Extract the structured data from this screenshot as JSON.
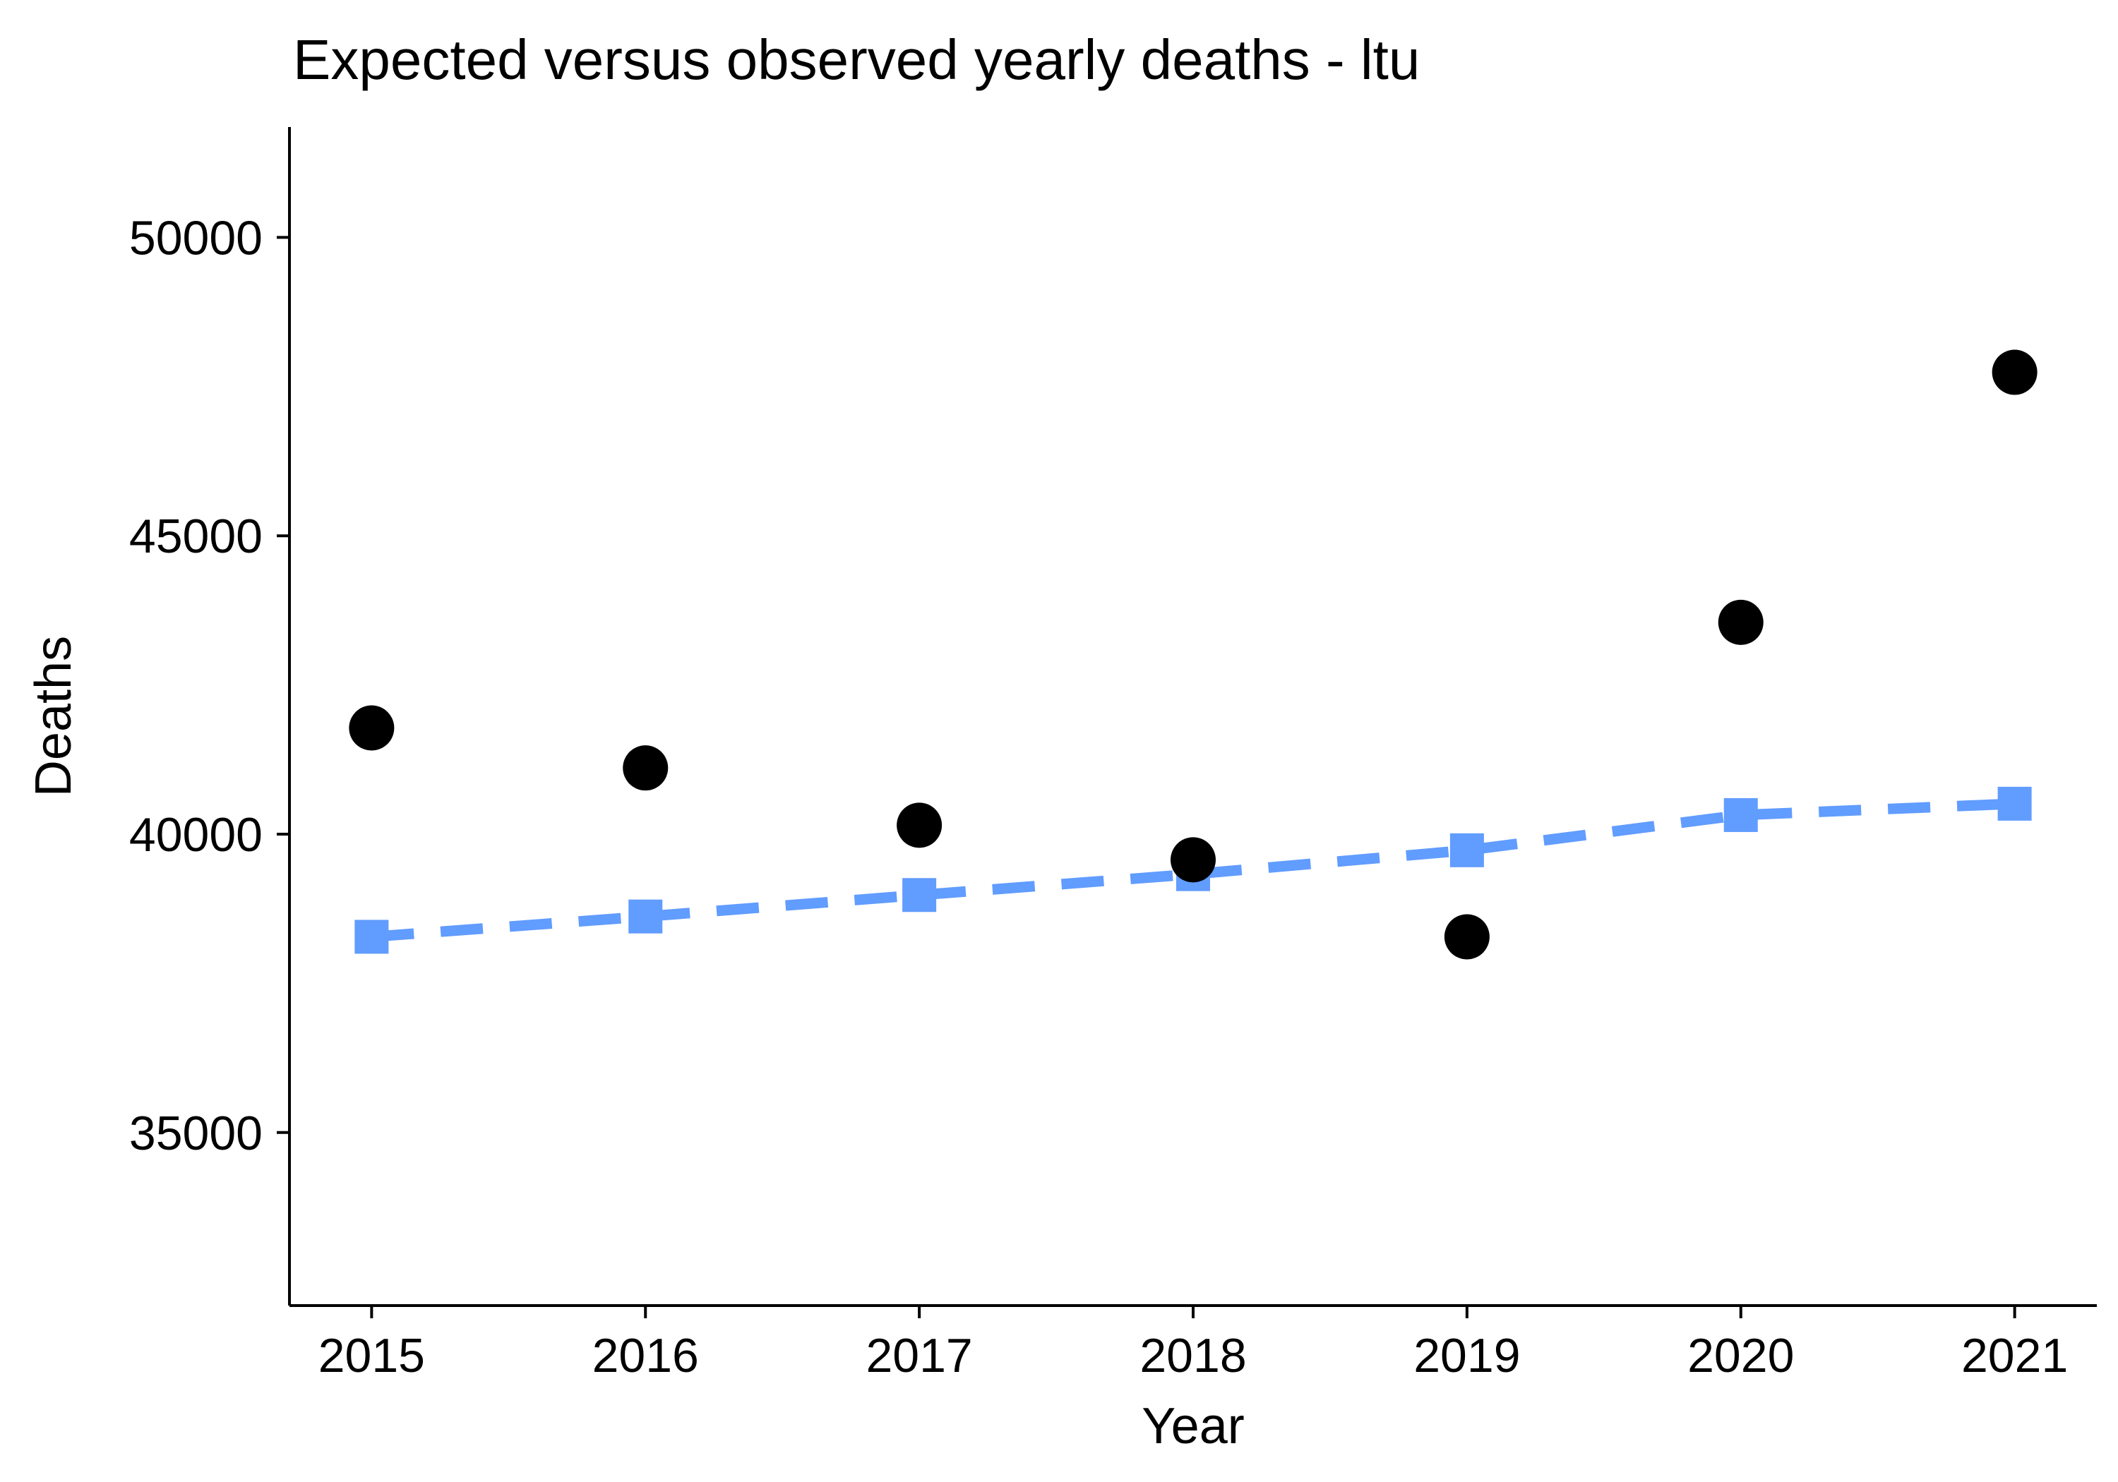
{
  "chart_data": {
    "type": "line",
    "title": "Expected versus observed yearly deaths - ltu",
    "xlabel": "Year",
    "ylabel": "Deaths",
    "categories": [
      "2015",
      "2016",
      "2017",
      "2018",
      "2019",
      "2020",
      "2021"
    ],
    "x_ticks": [
      "2015",
      "2016",
      "2017",
      "2018",
      "2019",
      "2020",
      "2021"
    ],
    "y_ticks": [
      "35000",
      "40000",
      "45000",
      "50000"
    ],
    "ylim": [
      32100,
      51850
    ],
    "xlim": [
      2014.7,
      2021.3
    ],
    "grid": false,
    "legend": "none",
    "series": [
      {
        "role": "observed",
        "style": "points",
        "marker": "circle",
        "color": "#000000",
        "x": [
          2015,
          2016,
          2017,
          2018,
          2019,
          2020,
          2021
        ],
        "values": [
          41780,
          41110,
          40150,
          39570,
          38280,
          43550,
          47740
        ]
      },
      {
        "role": "expected",
        "style": "dashed-line",
        "marker": "square",
        "color": "#619CFF",
        "x": [
          2015,
          2016,
          2017,
          2018,
          2019,
          2020,
          2021
        ],
        "values": [
          38280,
          38620,
          38980,
          39330,
          39730,
          40320,
          40510
        ]
      }
    ]
  }
}
